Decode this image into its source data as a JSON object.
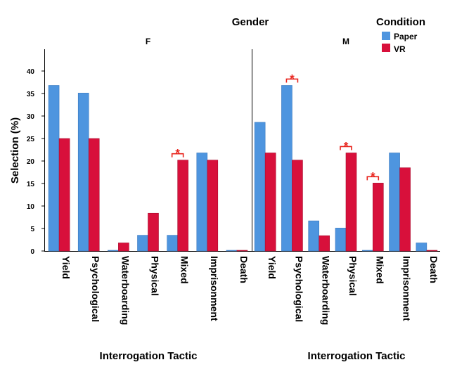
{
  "chart_data": {
    "type": "bar",
    "facet_title": "Gender",
    "ylabel": "Selection (%)",
    "xlabel": "Interrogation Tactic",
    "ylim": [
      0,
      44
    ],
    "yticks": [
      0,
      5,
      10,
      15,
      20,
      25,
      30,
      35,
      40
    ],
    "grid": false,
    "categories": [
      "Yield",
      "Psychological",
      "Waterboarding",
      "Physical",
      "Mixed",
      "Imprisonment",
      "Death"
    ],
    "legend": {
      "title": "Condition",
      "position": "top-right",
      "entries": [
        {
          "label": "Paper",
          "color": "#4e95df"
        },
        {
          "label": "VR",
          "color": "#d8103b"
        }
      ]
    },
    "panels": [
      {
        "title": "F",
        "series": [
          {
            "name": "Paper",
            "values": [
              36.8,
              35.1,
              0,
              3.5,
              3.5,
              21.8,
              0
            ]
          },
          {
            "name": "VR",
            "values": [
              25.0,
              25.0,
              1.8,
              8.4,
              20.2,
              20.2,
              0
            ]
          }
        ],
        "significance": [
          {
            "category": "Mixed",
            "label": "*"
          }
        ]
      },
      {
        "title": "M",
        "series": [
          {
            "name": "Paper",
            "values": [
              28.6,
              36.8,
              6.7,
              5.1,
              0,
              21.8,
              1.8
            ]
          },
          {
            "name": "VR",
            "values": [
              21.8,
              20.2,
              3.4,
              21.8,
              15.1,
              18.5,
              0
            ]
          }
        ],
        "significance": [
          {
            "category": "Psychological",
            "label": "*"
          },
          {
            "category": "Physical",
            "label": "*"
          },
          {
            "category": "Mixed",
            "label": "*"
          }
        ]
      }
    ]
  },
  "colors": {
    "paper": "#4e95df",
    "vr": "#d8103b",
    "paper_edge": "#3a78be",
    "vr_edge": "#a80c2e",
    "annotation": "#e8231c"
  }
}
